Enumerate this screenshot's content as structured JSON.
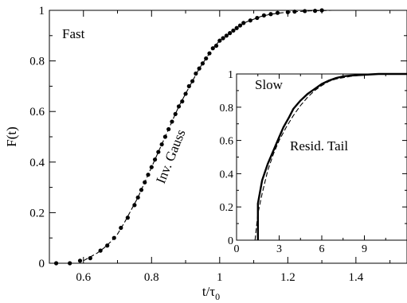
{
  "chart_data": [
    {
      "type": "scatter",
      "panel": "main",
      "xlabel_main": "t/τ",
      "xlabel_sub": "0",
      "ylabel": "F(t)",
      "xlim": [
        0.5,
        1.55
      ],
      "ylim": [
        0,
        1
      ],
      "xticks": [
        0.6,
        0.8,
        1.0,
        1.2,
        1.4
      ],
      "xtick_labels": [
        "0.6",
        "0.8",
        "1",
        "1.2",
        "1.4"
      ],
      "yticks": [
        0,
        0.2,
        0.4,
        0.6,
        0.8,
        1.0
      ],
      "ytick_labels": [
        "0",
        "0.2",
        "0.4",
        "0.6",
        "0.8",
        "1"
      ],
      "annotations": {
        "panel_label": "Fast",
        "curve_label": "Inv. Gauss"
      },
      "series": [
        {
          "style": "markers",
          "x": [
            0.52,
            0.56,
            0.59,
            0.62,
            0.65,
            0.67,
            0.69,
            0.71,
            0.73,
            0.75,
            0.76,
            0.77,
            0.78,
            0.79,
            0.8,
            0.81,
            0.82,
            0.83,
            0.84,
            0.85,
            0.86,
            0.87,
            0.88,
            0.89,
            0.9,
            0.91,
            0.92,
            0.93,
            0.94,
            0.95,
            0.96,
            0.97,
            0.98,
            0.99,
            1.0,
            1.01,
            1.02,
            1.03,
            1.04,
            1.05,
            1.06,
            1.07,
            1.09,
            1.11,
            1.13,
            1.15,
            1.17,
            1.2,
            1.22,
            1.25,
            1.28,
            1.3
          ],
          "y": [
            0.0,
            0.0,
            0.01,
            0.02,
            0.05,
            0.07,
            0.1,
            0.14,
            0.18,
            0.23,
            0.26,
            0.29,
            0.32,
            0.35,
            0.38,
            0.41,
            0.44,
            0.47,
            0.5,
            0.53,
            0.56,
            0.59,
            0.62,
            0.64,
            0.67,
            0.7,
            0.72,
            0.75,
            0.77,
            0.79,
            0.81,
            0.83,
            0.85,
            0.86,
            0.88,
            0.89,
            0.9,
            0.91,
            0.92,
            0.93,
            0.94,
            0.95,
            0.96,
            0.97,
            0.98,
            0.985,
            0.99,
            0.993,
            0.995,
            0.997,
            0.998,
            1.0
          ]
        },
        {
          "style": "dashed",
          "x": [
            0.6,
            0.62,
            0.64,
            0.66,
            0.68,
            0.7,
            0.72,
            0.74,
            0.76,
            0.78,
            0.8,
            0.82,
            0.84,
            0.86,
            0.88,
            0.9,
            0.92,
            0.94,
            0.96,
            0.98,
            1.0,
            1.02,
            1.04,
            1.06,
            1.08,
            1.1,
            1.12,
            1.15,
            1.18,
            1.21,
            1.24,
            1.27,
            1.3,
            1.33
          ],
          "y": [
            0.01,
            0.025,
            0.04,
            0.06,
            0.085,
            0.115,
            0.16,
            0.21,
            0.26,
            0.32,
            0.38,
            0.44,
            0.5,
            0.56,
            0.62,
            0.67,
            0.72,
            0.77,
            0.81,
            0.85,
            0.88,
            0.9,
            0.92,
            0.94,
            0.955,
            0.965,
            0.975,
            0.985,
            0.99,
            0.994,
            0.996,
            0.998,
            0.999,
            1.0
          ]
        }
      ]
    },
    {
      "type": "line",
      "panel": "inset",
      "xlim": [
        0,
        12
      ],
      "ylim": [
        0,
        1
      ],
      "xticks": [
        0,
        3,
        6,
        9
      ],
      "xtick_labels": [
        "0",
        "3",
        "6",
        "9"
      ],
      "yticks": [
        0,
        0.2,
        0.4,
        0.6,
        0.8,
        1.0
      ],
      "ytick_labels": [
        "0",
        "0.2",
        "0.4",
        "0.6",
        "0.8",
        "1"
      ],
      "annotations": {
        "panel_label": "Slow",
        "curve_label": "Resid. Tail"
      },
      "series": [
        {
          "style": "solid",
          "x": [
            1.5,
            1.5,
            1.8,
            2.2,
            2.6,
            3.0,
            3.3,
            3.7,
            4.0,
            4.5,
            5.0,
            5.5,
            6.0,
            6.5,
            7.0,
            7.5,
            8.0,
            9.0,
            10.0,
            12.0
          ],
          "y": [
            0.0,
            0.22,
            0.36,
            0.46,
            0.54,
            0.62,
            0.68,
            0.74,
            0.79,
            0.84,
            0.88,
            0.91,
            0.94,
            0.96,
            0.975,
            0.985,
            0.99,
            0.995,
            1.0,
            1.0
          ]
        },
        {
          "style": "dashed",
          "x": [
            1.3,
            1.5,
            1.8,
            2.2,
            2.6,
            3.0,
            3.5,
            4.0,
            4.5,
            5.0,
            5.5,
            6.0,
            6.5,
            7.0,
            8.0,
            9.0,
            10.0,
            12.0
          ],
          "y": [
            0.0,
            0.16,
            0.28,
            0.42,
            0.52,
            0.6,
            0.68,
            0.75,
            0.81,
            0.86,
            0.9,
            0.93,
            0.955,
            0.97,
            0.985,
            0.995,
            1.0,
            1.0
          ]
        }
      ]
    }
  ]
}
